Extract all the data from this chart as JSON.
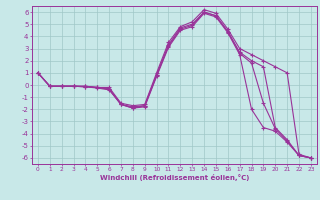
{
  "xlabel": "Windchill (Refroidissement éolien,°C)",
  "xlim": [
    -0.5,
    23.5
  ],
  "ylim": [
    -6.5,
    6.5
  ],
  "xticks": [
    0,
    1,
    2,
    3,
    4,
    5,
    6,
    7,
    8,
    9,
    10,
    11,
    12,
    13,
    14,
    15,
    16,
    17,
    18,
    19,
    20,
    21,
    22,
    23
  ],
  "yticks": [
    -6,
    -5,
    -4,
    -3,
    -2,
    -1,
    0,
    1,
    2,
    3,
    4,
    5,
    6
  ],
  "line_color": "#993399",
  "bg_color": "#c8e8e8",
  "grid_color": "#a0c8c8",
  "lines": [
    {
      "x": [
        0,
        1,
        2,
        3,
        4,
        5,
        6,
        7,
        8,
        9,
        10,
        11,
        12,
        13,
        14,
        15,
        16,
        17,
        18,
        19,
        20,
        21,
        22,
        23
      ],
      "y": [
        1.0,
        -0.1,
        -0.1,
        -0.1,
        -0.1,
        -0.2,
        -0.2,
        -1.5,
        -1.7,
        -1.6,
        1.0,
        3.5,
        4.8,
        5.2,
        6.2,
        5.9,
        4.6,
        3.0,
        2.5,
        2.0,
        1.5,
        1.0,
        -5.7,
        -6.0
      ]
    },
    {
      "x": [
        0,
        1,
        2,
        3,
        4,
        5,
        6,
        7,
        8,
        9,
        10,
        11,
        12,
        13,
        14,
        15,
        16,
        17,
        18,
        19,
        20,
        21,
        22,
        23
      ],
      "y": [
        1.0,
        -0.1,
        -0.1,
        -0.1,
        -0.1,
        -0.2,
        -0.3,
        -1.6,
        -1.8,
        -1.7,
        0.8,
        3.3,
        4.7,
        5.0,
        6.0,
        5.7,
        4.4,
        2.7,
        2.0,
        1.5,
        -3.5,
        -4.5,
        -5.8,
        -6.0
      ]
    },
    {
      "x": [
        0,
        1,
        2,
        3,
        4,
        5,
        6,
        7,
        8,
        9,
        10,
        11,
        12,
        13,
        14,
        15,
        16,
        17,
        18,
        19,
        20,
        21,
        22,
        23
      ],
      "y": [
        1.0,
        -0.1,
        -0.1,
        -0.1,
        -0.15,
        -0.2,
        -0.35,
        -1.6,
        -1.9,
        -1.7,
        0.8,
        3.2,
        4.6,
        4.9,
        6.0,
        5.7,
        4.4,
        2.6,
        1.8,
        -1.5,
        -3.6,
        -4.6,
        -5.8,
        -6.0
      ]
    },
    {
      "x": [
        0,
        1,
        2,
        3,
        4,
        5,
        6,
        7,
        8,
        9,
        10,
        11,
        12,
        13,
        14,
        15,
        16,
        17,
        18,
        19,
        20,
        21,
        22,
        23
      ],
      "y": [
        1.0,
        -0.1,
        -0.1,
        -0.1,
        -0.15,
        -0.25,
        -0.4,
        -1.6,
        -1.9,
        -1.8,
        0.7,
        3.1,
        4.5,
        4.8,
        5.9,
        5.6,
        4.3,
        2.5,
        -2.0,
        -3.5,
        -3.8,
        -4.7,
        -5.8,
        -6.0
      ]
    }
  ]
}
